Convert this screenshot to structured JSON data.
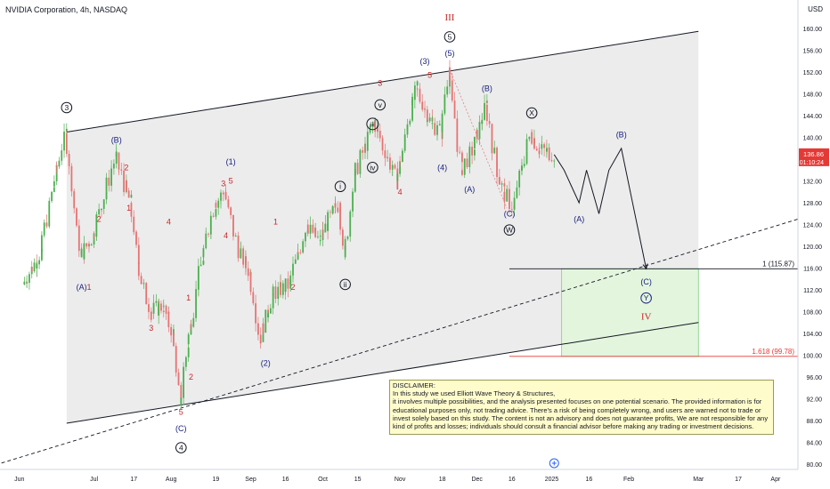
{
  "header": {
    "title": "NVIDIA Corporation, 4h, NASDAQ",
    "currency": "USD"
  },
  "colors": {
    "up": "#4caf50",
    "down": "#e57373",
    "channel_fill": "#ececec",
    "target_fill": "#e3f5dd",
    "target_border": "#7bd07b",
    "wave_blue": "#1a237e",
    "wave_red": "#c62828",
    "current_price_bg": "#e53935",
    "fib_line": "#e53935"
  },
  "chart_data": {
    "type": "candlestick",
    "symbol": "NVIDIA Corporation",
    "interval": "4h",
    "exchange": "NASDAQ",
    "ylim": [
      79,
      162
    ],
    "y_ticks": [
      80,
      84,
      88,
      92,
      96,
      100,
      104,
      108,
      112,
      116,
      120,
      124,
      128,
      132,
      136,
      140,
      144,
      148,
      152,
      156,
      160
    ],
    "x_ticks": [
      "Jun",
      "Jul",
      "17",
      "Aug",
      "19",
      "Sep",
      "16",
      "Oct",
      "15",
      "Nov",
      "18",
      "Dec",
      "16",
      "2025",
      "16",
      "Feb",
      "Mar",
      "17",
      "Apr"
    ],
    "current_price": "136.86",
    "countdown": "01:10:24",
    "price_path": [
      [
        "2024-06-03",
        113
      ],
      [
        "2024-06-10",
        119
      ],
      [
        "2024-06-15",
        131
      ],
      [
        "2024-06-20",
        140.8
      ],
      [
        "2024-06-26",
        118
      ],
      [
        "2024-07-01",
        122
      ],
      [
        "2024-07-10",
        136.5
      ],
      [
        "2024-07-16",
        128
      ],
      [
        "2024-07-19",
        117
      ],
      [
        "2024-07-24",
        108
      ],
      [
        "2024-07-29",
        109
      ],
      [
        "2024-08-02",
        104
      ],
      [
        "2024-08-05",
        90.7
      ],
      [
        "2024-08-08",
        102
      ],
      [
        "2024-08-14",
        118
      ],
      [
        "2024-08-19",
        128
      ],
      [
        "2024-08-23",
        130
      ],
      [
        "2024-08-28",
        120
      ],
      [
        "2024-09-02",
        115
      ],
      [
        "2024-09-06",
        102.5
      ],
      [
        "2024-09-11",
        111
      ],
      [
        "2024-09-18",
        113
      ],
      [
        "2024-09-25",
        124
      ],
      [
        "2024-09-30",
        121
      ],
      [
        "2024-10-05",
        126
      ],
      [
        "2024-10-08",
        128
      ],
      [
        "2024-10-10",
        118
      ],
      [
        "2024-10-14",
        133
      ],
      [
        "2024-10-18",
        138
      ],
      [
        "2024-10-22",
        143
      ],
      [
        "2024-10-31",
        132
      ],
      [
        "2024-11-06",
        146
      ],
      [
        "2024-11-08",
        149
      ],
      [
        "2024-11-14",
        142.5
      ],
      [
        "2024-11-18",
        141
      ],
      [
        "2024-11-21",
        152.9
      ],
      [
        "2024-11-26",
        134
      ],
      [
        "2024-12-01",
        138
      ],
      [
        "2024-12-06",
        146
      ],
      [
        "2024-12-10",
        135
      ],
      [
        "2024-12-13",
        130
      ],
      [
        "2024-12-17",
        127
      ],
      [
        "2024-12-20",
        134
      ],
      [
        "2024-12-24",
        141
      ],
      [
        "2024-12-27",
        138
      ],
      [
        "2025-01-02",
        137
      ]
    ],
    "projection_path": [
      [
        "2025-01-02",
        136.86
      ],
      [
        "2025-01-06",
        134
      ],
      [
        "2025-01-09",
        131
      ],
      [
        "2025-01-12",
        128
      ],
      [
        "2025-01-15",
        134
      ],
      [
        "2025-01-20",
        126
      ],
      [
        "2025-01-24",
        134
      ],
      [
        "2025-01-29",
        138
      ],
      [
        "2025-02-08",
        115.87
      ]
    ],
    "channel": {
      "upper": [
        [
          "2024-06-20",
          141
        ],
        [
          "2025-03-01",
          159.5
        ]
      ],
      "lower": [
        [
          "2024-06-20",
          87.5
        ],
        [
          "2025-03-01",
          106
        ]
      ]
    },
    "trendline_dashed": [
      [
        "2024-05-20",
        79.5
      ],
      [
        "2025-04-10",
        125
      ]
    ],
    "target_zone": {
      "x": [
        "2025-01-05",
        "2025-03-01"
      ],
      "y": [
        99.78,
        115.87
      ]
    },
    "levels": [
      {
        "label": "1 (115.87)",
        "value": 115.87,
        "x0": "2024-12-15",
        "color": "#131722"
      },
      {
        "label": "1.618 (99.78)",
        "value": 99.78,
        "x0": "2024-12-15",
        "color": "#e53935"
      }
    ],
    "wave_labels": [
      {
        "text": "3",
        "style": "circle",
        "color": "#131722",
        "x": "2024-06-20",
        "y": 145.5
      },
      {
        "text": "(A)",
        "style": "plain",
        "color": "#1a237e",
        "x": "2024-06-26",
        "y": 112.5
      },
      {
        "text": "(B)",
        "style": "plain",
        "color": "#1a237e",
        "x": "2024-07-10",
        "y": 139.5
      },
      {
        "text": "1",
        "style": "plain",
        "color": "#c62828",
        "x": "2024-06-29",
        "y": 112.5
      },
      {
        "text": "2",
        "style": "plain",
        "color": "#c62828",
        "x": "2024-07-03",
        "y": 125
      },
      {
        "text": "1",
        "style": "plain",
        "color": "#c62828",
        "x": "2024-07-15",
        "y": 127
      },
      {
        "text": "2",
        "style": "plain",
        "color": "#c62828",
        "x": "2024-07-14",
        "y": 134.5
      },
      {
        "text": "3",
        "style": "plain",
        "color": "#c62828",
        "x": "2024-07-24",
        "y": 105
      },
      {
        "text": "4",
        "style": "plain",
        "color": "#c62828",
        "x": "2024-07-31",
        "y": 124.5
      },
      {
        "text": "1",
        "style": "plain",
        "color": "#c62828",
        "x": "2024-08-08",
        "y": 110.5
      },
      {
        "text": "2",
        "style": "plain",
        "color": "#c62828",
        "x": "2024-08-09",
        "y": 96
      },
      {
        "text": "5",
        "style": "plain",
        "color": "#c62828",
        "x": "2024-08-05",
        "y": 89.5
      },
      {
        "text": "(C)",
        "style": "plain",
        "color": "#1a237e",
        "x": "2024-08-05",
        "y": 86.5
      },
      {
        "text": "4",
        "style": "circle",
        "color": "#131722",
        "x": "2024-08-05",
        "y": 83
      },
      {
        "text": "3",
        "style": "plain",
        "color": "#c62828",
        "x": "2024-08-22",
        "y": 131.5
      },
      {
        "text": "5",
        "style": "plain",
        "color": "#c62828",
        "x": "2024-08-25",
        "y": 132
      },
      {
        "text": "(1)",
        "style": "plain",
        "color": "#1a237e",
        "x": "2024-08-25",
        "y": 135.5
      },
      {
        "text": "4",
        "style": "plain",
        "color": "#c62828",
        "x": "2024-08-23",
        "y": 122
      },
      {
        "text": "(2)",
        "style": "plain",
        "color": "#1a237e",
        "x": "2024-09-08",
        "y": 98.5
      },
      {
        "text": "1",
        "style": "plain",
        "color": "#c62828",
        "x": "2024-09-12",
        "y": 124.5
      },
      {
        "text": "2",
        "style": "plain",
        "color": "#c62828",
        "x": "2024-09-19",
        "y": 112.5
      },
      {
        "text": "i",
        "style": "circle",
        "color": "#131722",
        "x": "2024-10-08",
        "y": 131
      },
      {
        "text": "ii",
        "style": "circle",
        "color": "#131722",
        "x": "2024-10-10",
        "y": 113
      },
      {
        "text": "iii",
        "style": "circle",
        "color": "#131722",
        "x": "2024-10-21",
        "y": 142.5
      },
      {
        "text": "iv",
        "style": "circle",
        "color": "#131722",
        "x": "2024-10-21",
        "y": 134.5
      },
      {
        "text": "v",
        "style": "circle",
        "color": "#131722",
        "x": "2024-10-24",
        "y": 146
      },
      {
        "text": "3",
        "style": "plain",
        "color": "#c62828",
        "x": "2024-10-24",
        "y": 150
      },
      {
        "text": "4",
        "style": "plain",
        "color": "#c62828",
        "x": "2024-11-01",
        "y": 130
      },
      {
        "text": "(3)",
        "style": "plain",
        "color": "#1a237e",
        "x": "2024-11-11",
        "y": 154
      },
      {
        "text": "5",
        "style": "plain",
        "color": "#c62828",
        "x": "2024-11-13",
        "y": 151.5
      },
      {
        "text": "(4)",
        "style": "plain",
        "color": "#1a237e",
        "x": "2024-11-18",
        "y": 134.5
      },
      {
        "text": "(5)",
        "style": "plain",
        "color": "#1a237e",
        "x": "2024-11-21",
        "y": 155.5
      },
      {
        "text": "5",
        "style": "circle",
        "color": "#131722",
        "x": "2024-11-21",
        "y": 158.5
      },
      {
        "text": "III",
        "style": "plain",
        "color": "#c62828",
        "x": "2024-11-21",
        "y": 162
      },
      {
        "text": "(A)",
        "style": "plain",
        "color": "#1a237e",
        "x": "2024-11-29",
        "y": 130.5
      },
      {
        "text": "(B)",
        "style": "plain",
        "color": "#1a237e",
        "x": "2024-12-06",
        "y": 149
      },
      {
        "text": "(C)",
        "style": "plain",
        "color": "#1a237e",
        "x": "2024-12-15",
        "y": 126
      },
      {
        "text": "W",
        "style": "circle",
        "color": "#131722",
        "x": "2024-12-15",
        "y": 123
      },
      {
        "text": "X",
        "style": "circle",
        "color": "#131722",
        "x": "2024-12-24",
        "y": 144.5
      },
      {
        "text": "(A)",
        "style": "plain",
        "color": "#1a237e",
        "x": "2025-01-12",
        "y": 125
      },
      {
        "text": "(B)",
        "style": "plain",
        "color": "#1a237e",
        "x": "2025-01-29",
        "y": 140.5
      },
      {
        "text": "(C)",
        "style": "plain",
        "color": "#1a237e",
        "x": "2025-02-08",
        "y": 113.5
      },
      {
        "text": "Y",
        "style": "circle",
        "color": "#1a237e",
        "x": "2025-02-08",
        "y": 110.5
      },
      {
        "text": "IV",
        "style": "plain",
        "color": "#c62828",
        "x": "2025-02-08",
        "y": 107
      }
    ]
  },
  "disclaimer": {
    "title": "DISCLAIMER:",
    "lines": [
      "In this study we used Elliott Wave Theory & Structures,",
      "it involves multiple possibilities, and the analysis presented focuses on one potential scenario. The provided information is for",
      "educational purposes only, not trading advice. There's a risk of being completely wrong, and users are warned not to trade or",
      "invest solely based on this study. The content is not an advisory and does not guarantee profits, We are not responsible for any",
      "kind of profits and losses; individuals should consult a financial advisor before making any trading or investment decisions."
    ]
  }
}
